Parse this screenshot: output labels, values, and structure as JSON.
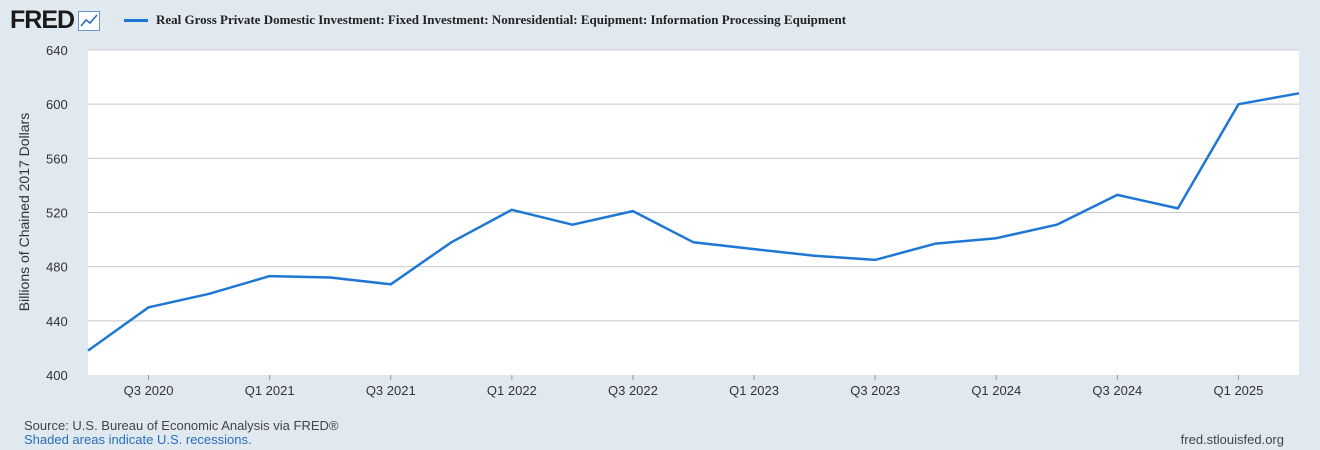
{
  "header": {
    "logo_text": "FRED",
    "logo_icon": "line-graph-icon"
  },
  "colors": {
    "background": "#e1e9f0",
    "series_line": "#1f77d4",
    "plot_bg": "#ffffff",
    "grid": "#c8c8c8"
  },
  "chart_data": {
    "type": "line",
    "title": "",
    "xlabel": "",
    "ylabel": "Billions of Chained 2017 Dollars",
    "ylim": [
      400,
      640
    ],
    "yticks": [
      400,
      440,
      480,
      520,
      560,
      600,
      640
    ],
    "grid": true,
    "legend_position": "top-left",
    "x": [
      "Q2 2020",
      "Q3 2020",
      "Q4 2020",
      "Q1 2021",
      "Q2 2021",
      "Q3 2021",
      "Q4 2021",
      "Q1 2022",
      "Q2 2022",
      "Q3 2022",
      "Q4 2022",
      "Q1 2023",
      "Q2 2023",
      "Q3 2023",
      "Q4 2023",
      "Q1 2024",
      "Q2 2024",
      "Q3 2024",
      "Q4 2024",
      "Q1 2025",
      "Q2 2025"
    ],
    "xtick_labels": [
      "Q3 2020",
      "Q1 2021",
      "Q3 2021",
      "Q1 2022",
      "Q3 2022",
      "Q1 2023",
      "Q3 2023",
      "Q1 2024",
      "Q3 2024",
      "Q1 2025"
    ],
    "series": [
      {
        "name": "Real Gross Private Domestic Investment: Fixed Investment: Nonresidential: Equipment: Information Processing Equipment",
        "values": [
          418,
          450,
          460,
          473,
          472,
          467,
          498,
          522,
          511,
          521,
          498,
          493,
          488,
          485,
          497,
          501,
          511,
          533,
          523,
          600,
          608
        ]
      }
    ]
  },
  "footer": {
    "source": "Source: U.S. Bureau of Economic Analysis via FRED®",
    "recession_note": "Shaded areas indicate U.S. recessions.",
    "site": "fred.stlouisfed.org"
  }
}
